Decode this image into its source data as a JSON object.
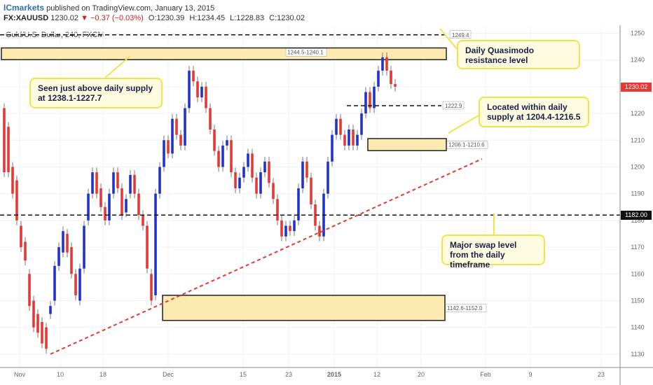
{
  "header": {
    "brand": "ICmarkets",
    "published": "published on TradingView.com, January 13, 2015",
    "symbol": "FX:XAUUSD",
    "last": "1230.02",
    "change": "▼ −0.37 (−0.03%)",
    "open": "O:1230.39",
    "high": "H:1234.45",
    "low": "L:1228.83",
    "close": "C:1230.02"
  },
  "chart_title": "Gold/U.S. Dollar, 240, FXCM",
  "colors": {
    "bull_candle": "#2233cc",
    "bear_candle": "#e53935",
    "zone_fill": "#fdeab0",
    "zone_border": "#222222",
    "trendline": "#e53935",
    "callout_border": "#f2e24a",
    "callout_fill": "#fffbe0"
  },
  "chart_data": {
    "type": "candlestick",
    "ylim": [
      1125,
      1253
    ],
    "y_ticks": [
      1130,
      1140,
      1150,
      1160,
      1170,
      1180,
      1190,
      1200,
      1210,
      1220,
      1230,
      1240,
      1250
    ],
    "x_tick_labels": [
      "Nov",
      "10",
      "18",
      "Dec",
      "15",
      "23",
      "2015",
      "12",
      "20",
      "Feb",
      "9",
      "23"
    ],
    "price_path": [
      [
        1222,
        1198
      ],
      [
        1215,
        1198
      ],
      [
        1200,
        1190
      ],
      [
        1195,
        1180
      ],
      [
        1178,
        1170
      ],
      [
        1172,
        1165
      ],
      [
        1160,
        1148
      ],
      [
        1150,
        1140
      ],
      [
        1145,
        1138
      ],
      [
        1142,
        1134
      ],
      [
        1140,
        1132
      ],
      [
        1145,
        1148
      ],
      [
        1150,
        1163
      ],
      [
        1163,
        1170
      ],
      [
        1168,
        1176
      ],
      [
        1175,
        1168
      ],
      [
        1170,
        1160
      ],
      [
        1160,
        1152
      ],
      [
        1150,
        1162
      ],
      [
        1162,
        1178
      ],
      [
        1180,
        1190
      ],
      [
        1190,
        1198
      ],
      [
        1198,
        1190
      ],
      [
        1192,
        1185
      ],
      [
        1185,
        1180
      ],
      [
        1180,
        1190
      ],
      [
        1190,
        1198
      ],
      [
        1198,
        1192
      ],
      [
        1192,
        1182
      ],
      [
        1183,
        1188
      ],
      [
        1190,
        1197
      ],
      [
        1197,
        1190
      ],
      [
        1190,
        1182
      ],
      [
        1182,
        1178
      ],
      [
        1178,
        1162
      ],
      [
        1160,
        1150
      ],
      [
        1152,
        1190
      ],
      [
        1190,
        1200
      ],
      [
        1200,
        1210
      ],
      [
        1210,
        1205
      ],
      [
        1205,
        1218
      ],
      [
        1218,
        1212
      ],
      [
        1212,
        1208
      ],
      [
        1208,
        1222
      ],
      [
        1222,
        1236
      ],
      [
        1236,
        1232
      ],
      [
        1232,
        1226
      ],
      [
        1226,
        1230
      ],
      [
        1230,
        1222
      ],
      [
        1222,
        1214
      ],
      [
        1214,
        1206
      ],
      [
        1206,
        1200
      ],
      [
        1200,
        1208
      ],
      [
        1208,
        1210
      ],
      [
        1210,
        1198
      ],
      [
        1198,
        1192
      ],
      [
        1192,
        1196
      ],
      [
        1196,
        1200
      ],
      [
        1200,
        1205
      ],
      [
        1205,
        1196
      ],
      [
        1196,
        1190
      ],
      [
        1190,
        1198
      ],
      [
        1198,
        1202
      ],
      [
        1202,
        1194
      ],
      [
        1194,
        1188
      ],
      [
        1188,
        1180
      ],
      [
        1180,
        1174
      ],
      [
        1174,
        1178
      ],
      [
        1178,
        1176
      ],
      [
        1176,
        1180
      ],
      [
        1180,
        1192
      ],
      [
        1192,
        1202
      ],
      [
        1202,
        1196
      ],
      [
        1196,
        1186
      ],
      [
        1186,
        1178
      ],
      [
        1178,
        1174
      ],
      [
        1174,
        1190
      ],
      [
        1190,
        1202
      ],
      [
        1202,
        1212
      ],
      [
        1212,
        1218
      ],
      [
        1218,
        1212
      ],
      [
        1212,
        1208
      ],
      [
        1208,
        1214
      ],
      [
        1214,
        1208
      ],
      [
        1208,
        1212
      ],
      [
        1212,
        1220
      ],
      [
        1220,
        1228
      ],
      [
        1228,
        1222
      ],
      [
        1222,
        1230
      ],
      [
        1230,
        1236
      ],
      [
        1236,
        1241
      ],
      [
        1241,
        1236
      ],
      [
        1236,
        1231
      ],
      [
        1231,
        1230
      ]
    ],
    "levels": [
      {
        "label": "1249.4",
        "value": 1249.4,
        "style": "dashed-black"
      },
      {
        "label": "1222.9",
        "value": 1222.9,
        "style": "dashed-black"
      },
      {
        "label": "1182.00",
        "value": 1182.0,
        "style": "dashed-black"
      }
    ],
    "zones": [
      {
        "label": "1244.5-1240.1",
        "top": 1244.5,
        "bottom": 1240.1
      },
      {
        "label": "1206.1-1210.6",
        "top": 1210.6,
        "bottom": 1206.1
      },
      {
        "label": "1142.6-1152.0",
        "top": 1152.0,
        "bottom": 1142.6
      }
    ],
    "trendline": {
      "from": [
        0.05,
        1130
      ],
      "to": [
        0.82,
        1203
      ]
    },
    "last_price_label": "1230.02"
  },
  "annotations": [
    {
      "id": "quasimodo",
      "text": "Daily Quasimodo resistance level"
    },
    {
      "id": "above-supply",
      "text": "Seen just above daily supply at 1238.1-1227.7"
    },
    {
      "id": "within-supply",
      "text": "Located within daily supply at 1204.4-1216.5"
    },
    {
      "id": "swap",
      "text": "Major swap level from the daily timeframe"
    }
  ]
}
